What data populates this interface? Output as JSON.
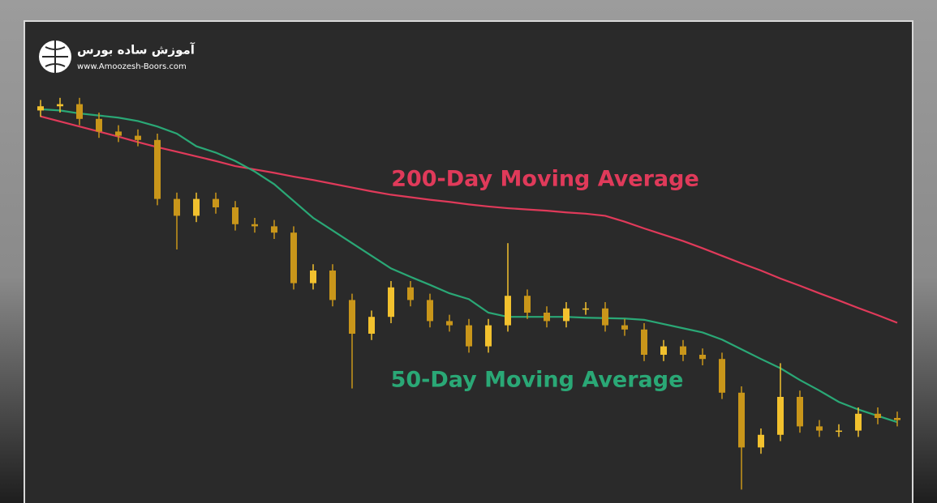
{
  "logo": {
    "title": "آموزش ساده بورس",
    "url": "www.Amoozesh-Boors.com"
  },
  "chart_data": {
    "type": "candlestick",
    "ylim": [
      0,
      100
    ],
    "up_color": "#f2c12e",
    "down_color": "#c9961a",
    "candles": {
      "open": [
        93,
        94,
        94.5,
        91,
        88,
        87,
        86,
        72,
        68,
        72,
        70,
        66,
        65.5,
        64,
        52,
        55,
        48,
        40,
        44,
        51,
        48,
        43,
        42,
        37,
        42,
        49,
        45,
        43,
        46,
        46,
        42,
        41,
        35,
        37,
        35,
        34,
        26,
        13,
        16,
        25,
        18,
        17,
        17,
        21,
        20
      ],
      "high": [
        95.5,
        96,
        96,
        92.5,
        89.5,
        88.5,
        87.5,
        73.5,
        73.5,
        73.5,
        71.5,
        67.5,
        67,
        65.5,
        56.5,
        56.5,
        49.5,
        45.5,
        52.5,
        52.5,
        49.5,
        44.5,
        43.5,
        43.5,
        61.5,
        50.5,
        46.5,
        47.5,
        47.5,
        47.5,
        43.5,
        42.5,
        38.5,
        38.5,
        36.5,
        35.5,
        27.5,
        17.5,
        33,
        26.5,
        19.5,
        18.5,
        22.5,
        22.5,
        21.5
      ],
      "low": [
        91.5,
        92.5,
        89.5,
        86.5,
        85.5,
        84.5,
        70.5,
        60,
        66.5,
        68.5,
        64.5,
        64,
        62.5,
        50.5,
        50.5,
        46.5,
        27,
        38.5,
        42.5,
        46.5,
        41.5,
        40.5,
        35.5,
        35.5,
        40.5,
        43.5,
        41.5,
        41.5,
        44.5,
        40.5,
        39.5,
        33.5,
        33.5,
        33.5,
        32.5,
        24.5,
        3,
        11.5,
        14.5,
        16.5,
        15.5,
        15.5,
        15.5,
        18.5,
        18
      ],
      "close": [
        94,
        94.5,
        91,
        88,
        87,
        86,
        72,
        68,
        72,
        70,
        66,
        65.5,
        64,
        52,
        55,
        48,
        40,
        44,
        51,
        48,
        43,
        42,
        37,
        42,
        49,
        45,
        43,
        46,
        46,
        42,
        41,
        35,
        37,
        35,
        34,
        26,
        13,
        16,
        25,
        18,
        17,
        17,
        21,
        20,
        19.5
      ]
    },
    "series": [
      {
        "name": "200-Day Moving Average",
        "color": "#e03a5a",
        "values": [
          91.6,
          90.4,
          89.2,
          88,
          86.8,
          85.5,
          84.3,
          83.2,
          82.1,
          81,
          79.8,
          79,
          78.2,
          77.3,
          76.5,
          75.6,
          74.7,
          73.8,
          73,
          72.4,
          71.8,
          71.3,
          70.7,
          70.2,
          69.8,
          69.5,
          69.2,
          68.8,
          68.5,
          68,
          66.6,
          65,
          63.5,
          62,
          60.3,
          58.5,
          56.7,
          55,
          53.1,
          51.4,
          49.6,
          47.9,
          46.1,
          44.4,
          42.6
        ]
      },
      {
        "name": "50-Day Moving Average",
        "color": "#2aa876",
        "values": [
          93.3,
          93,
          92.3,
          91.8,
          91.3,
          90.5,
          89.2,
          87.5,
          84.5,
          83,
          81,
          78.5,
          75.5,
          71.5,
          67.5,
          64.5,
          61.5,
          58.5,
          55.5,
          53.5,
          51.6,
          49.6,
          48.2,
          45,
          44,
          44,
          44,
          44,
          43.8,
          43.7,
          43.6,
          43.3,
          42.3,
          41.3,
          40.3,
          38.6,
          36.3,
          34,
          31.8,
          29,
          26.5,
          23.8,
          22,
          20.5,
          19
        ]
      }
    ]
  }
}
